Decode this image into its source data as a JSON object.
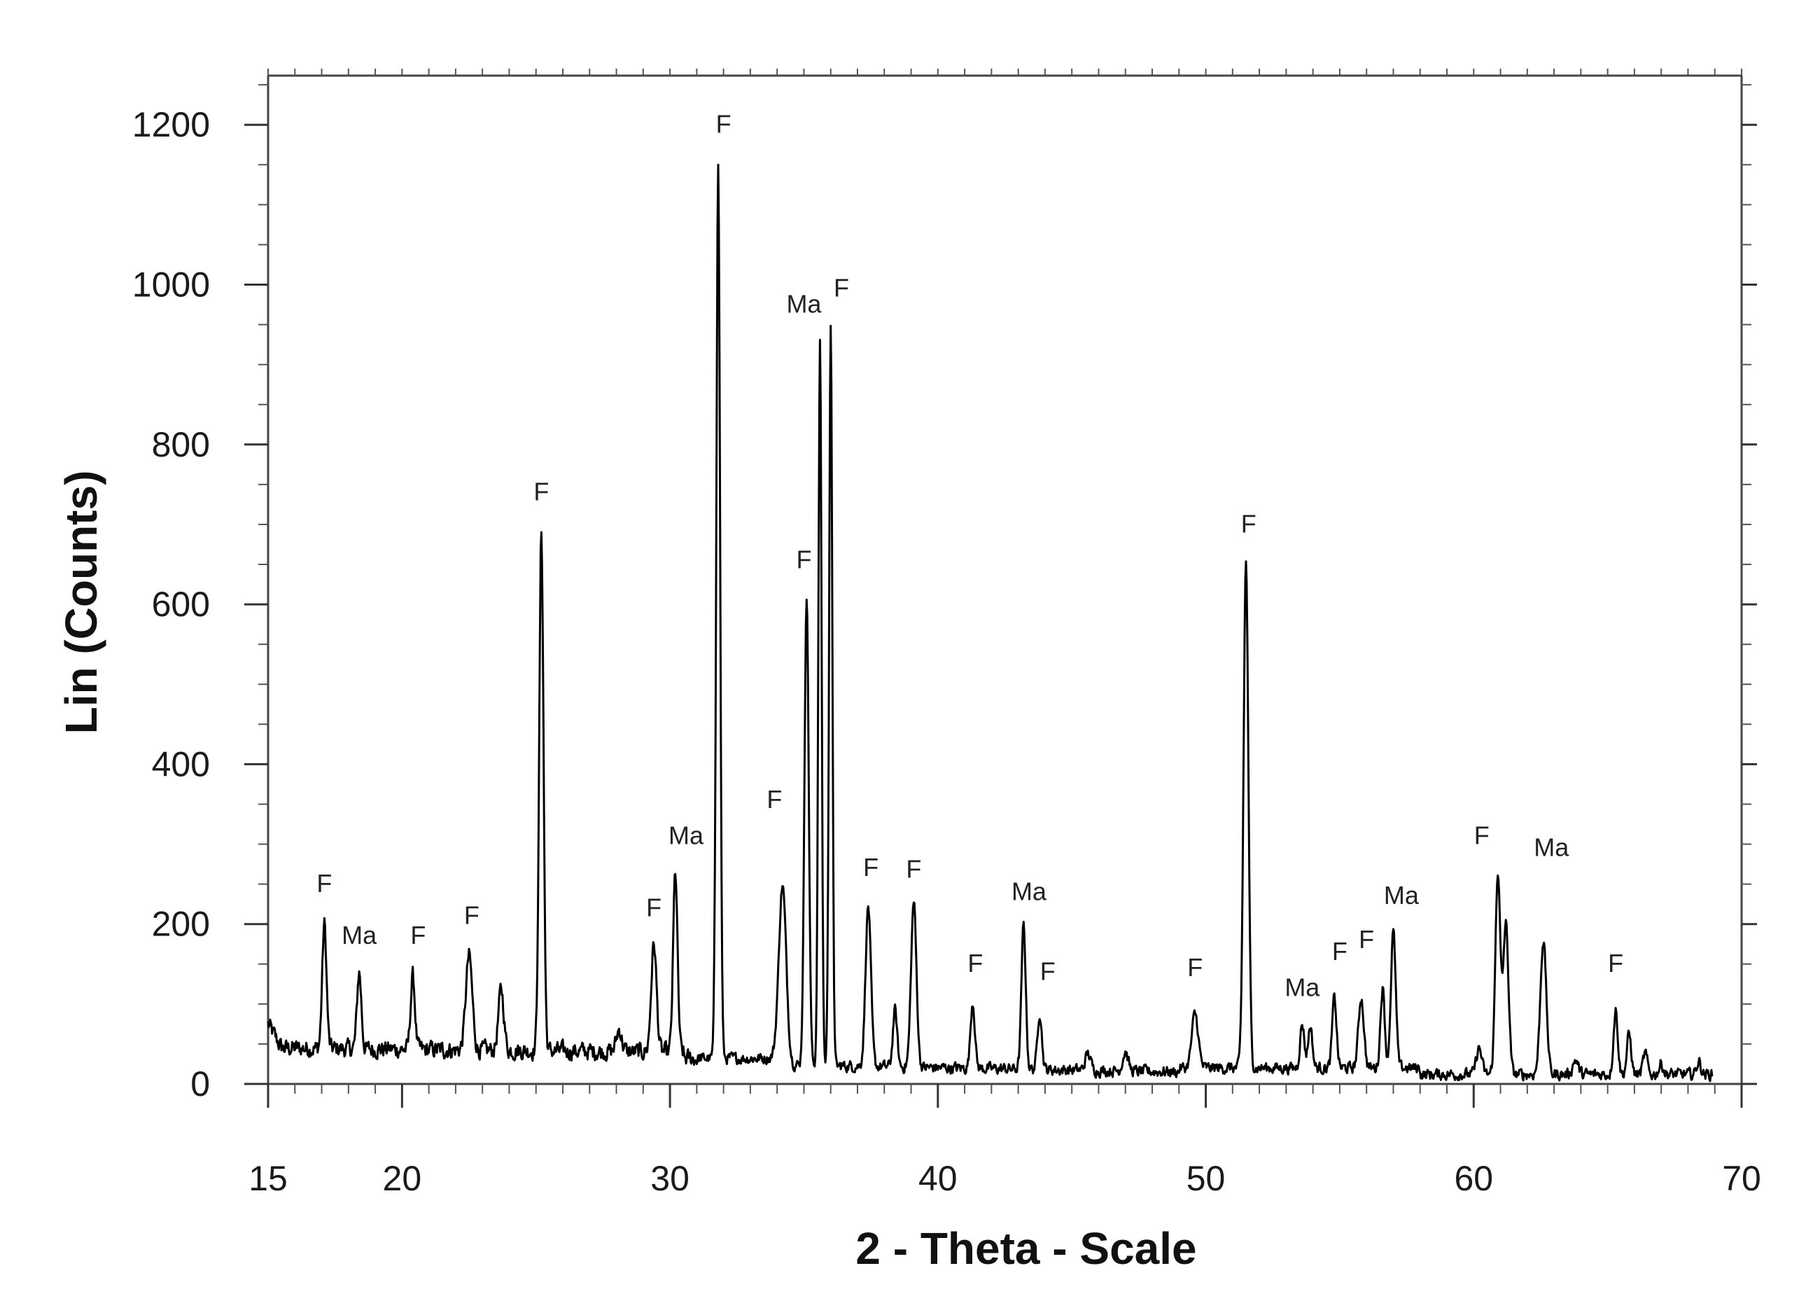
{
  "chart_data": {
    "type": "line",
    "title": "",
    "xlabel": "2 - Theta - Scale",
    "ylabel": "Lin (Counts)",
    "xlim": [
      15,
      70
    ],
    "ylim": [
      0,
      1260
    ],
    "x_major_ticks": [
      15,
      20,
      30,
      40,
      50,
      60,
      70
    ],
    "y_major_ticks": [
      0,
      200,
      400,
      600,
      800,
      1000,
      1200
    ],
    "x_minor_step": 1,
    "y_minor_step": 50,
    "grid": false,
    "line_color": "#000000",
    "background": 45,
    "series": [
      {
        "peaks": [
          {
            "x": 17.1,
            "y": 200,
            "w": 0.08
          },
          {
            "x": 18.4,
            "y": 140,
            "w": 0.08
          },
          {
            "x": 20.4,
            "y": 135,
            "w": 0.08
          },
          {
            "x": 22.5,
            "y": 160,
            "w": 0.12
          },
          {
            "x": 23.7,
            "y": 118,
            "w": 0.1
          },
          {
            "x": 25.2,
            "y": 690,
            "w": 0.08
          },
          {
            "x": 28.1,
            "y": 68,
            "w": 0.1
          },
          {
            "x": 29.4,
            "y": 175,
            "w": 0.1
          },
          {
            "x": 30.2,
            "y": 265,
            "w": 0.08
          },
          {
            "x": 31.8,
            "y": 1150,
            "w": 0.07
          },
          {
            "x": 34.2,
            "y": 248,
            "w": 0.14
          },
          {
            "x": 35.1,
            "y": 612,
            "w": 0.08
          },
          {
            "x": 35.6,
            "y": 925,
            "w": 0.06
          },
          {
            "x": 36.0,
            "y": 945,
            "w": 0.06
          },
          {
            "x": 37.4,
            "y": 222,
            "w": 0.1
          },
          {
            "x": 38.4,
            "y": 92,
            "w": 0.08
          },
          {
            "x": 39.1,
            "y": 228,
            "w": 0.1
          },
          {
            "x": 41.3,
            "y": 103,
            "w": 0.08
          },
          {
            "x": 43.2,
            "y": 198,
            "w": 0.08
          },
          {
            "x": 43.8,
            "y": 90,
            "w": 0.08
          },
          {
            "x": 45.6,
            "y": 38,
            "w": 0.1
          },
          {
            "x": 47.0,
            "y": 40,
            "w": 0.1
          },
          {
            "x": 49.6,
            "y": 88,
            "w": 0.12
          },
          {
            "x": 51.5,
            "y": 652,
            "w": 0.09
          },
          {
            "x": 53.6,
            "y": 75,
            "w": 0.08
          },
          {
            "x": 53.9,
            "y": 72,
            "w": 0.08
          },
          {
            "x": 54.8,
            "y": 108,
            "w": 0.08
          },
          {
            "x": 55.8,
            "y": 108,
            "w": 0.1
          },
          {
            "x": 56.6,
            "y": 120,
            "w": 0.08
          },
          {
            "x": 57.0,
            "y": 190,
            "w": 0.09
          },
          {
            "x": 60.2,
            "y": 45,
            "w": 0.1
          },
          {
            "x": 60.9,
            "y": 265,
            "w": 0.09
          },
          {
            "x": 61.2,
            "y": 200,
            "w": 0.1
          },
          {
            "x": 62.6,
            "y": 180,
            "w": 0.11
          },
          {
            "x": 63.8,
            "y": 30,
            "w": 0.1
          },
          {
            "x": 65.3,
            "y": 92,
            "w": 0.08
          },
          {
            "x": 65.8,
            "y": 62,
            "w": 0.08
          },
          {
            "x": 66.4,
            "y": 38,
            "w": 0.08
          },
          {
            "x": 67.0,
            "y": 25,
            "w": 0.08
          },
          {
            "x": 68.4,
            "y": 28,
            "w": 0.08
          }
        ]
      }
    ],
    "annotations": [
      {
        "text": "F",
        "x": 17.1,
        "y": 240
      },
      {
        "text": "Ma",
        "x": 18.4,
        "y": 175
      },
      {
        "text": "F",
        "x": 20.6,
        "y": 175
      },
      {
        "text": "F",
        "x": 22.6,
        "y": 200
      },
      {
        "text": "F",
        "x": 25.2,
        "y": 730
      },
      {
        "text": "F",
        "x": 29.4,
        "y": 210
      },
      {
        "text": "Ma",
        "x": 30.6,
        "y": 300
      },
      {
        "text": "F",
        "x": 32.0,
        "y": 1190
      },
      {
        "text": "F",
        "x": 33.9,
        "y": 345
      },
      {
        "text": "F",
        "x": 35.0,
        "y": 645
      },
      {
        "text": "Ma",
        "x": 35.0,
        "y": 965
      },
      {
        "text": "F",
        "x": 36.4,
        "y": 985
      },
      {
        "text": "F",
        "x": 37.5,
        "y": 260
      },
      {
        "text": "F",
        "x": 39.1,
        "y": 258
      },
      {
        "text": "F",
        "x": 41.4,
        "y": 140
      },
      {
        "text": "Ma",
        "x": 43.4,
        "y": 230
      },
      {
        "text": "F",
        "x": 44.1,
        "y": 130
      },
      {
        "text": "F",
        "x": 49.6,
        "y": 135
      },
      {
        "text": "F",
        "x": 51.6,
        "y": 690
      },
      {
        "text": "Ma",
        "x": 53.6,
        "y": 110
      },
      {
        "text": "F",
        "x": 55.0,
        "y": 155
      },
      {
        "text": "F",
        "x": 56.0,
        "y": 170
      },
      {
        "text": "Ma",
        "x": 57.3,
        "y": 225
      },
      {
        "text": "F",
        "x": 60.3,
        "y": 300
      },
      {
        "text": "Ma",
        "x": 62.9,
        "y": 285
      },
      {
        "text": "F",
        "x": 65.3,
        "y": 140
      }
    ]
  }
}
